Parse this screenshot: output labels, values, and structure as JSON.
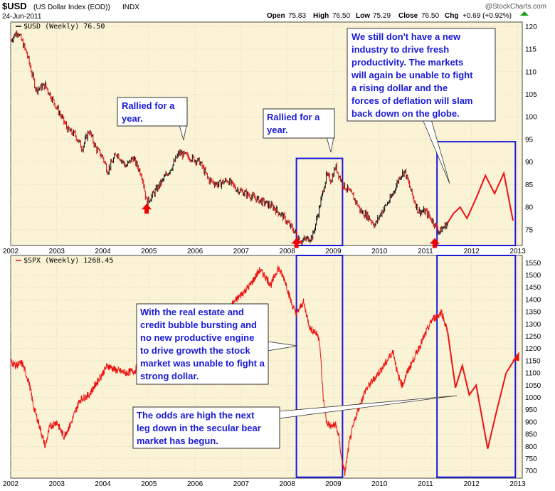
{
  "header": {
    "symbol": "$USD",
    "description": "(US Dollar Index (EOD))",
    "exchange": "INDX",
    "date": "24-Jun-2011",
    "open_label": "Open",
    "open": "75.83",
    "high_label": "High",
    "high": "76.50",
    "low_label": "Low",
    "low": "75.29",
    "close_label": "Close",
    "close": "76.50",
    "chg_label": "Chg",
    "chg": "+0.69 (+0.92%)",
    "watermark": "@StockCharts.com"
  },
  "colors": {
    "panel_bg": "#fbf3d5",
    "line": "#ee1111",
    "box": "#1a1add",
    "bar_up": "#111111",
    "bar_down": "#dd1111",
    "note_text": "#1a1ad8",
    "grid": "#cfc7a8"
  },
  "chart_data": [
    {
      "type": "line",
      "legend": "$USD (Weekly) 76.50",
      "x_ticks": [
        "2002",
        "2003",
        "2004",
        "2005",
        "2006",
        "2007",
        "2008",
        "2009",
        "2010",
        "2011",
        "2012",
        "2013"
      ],
      "y_ticks": [
        75,
        80,
        85,
        90,
        95,
        100,
        105,
        110,
        115,
        120
      ],
      "xlim": [
        2002.0,
        2013.1
      ],
      "ylim": [
        71.5,
        121.0
      ],
      "series": [
        {
          "values_desc": "weekly price",
          "x": [
            2002.0,
            2002.15,
            2002.35,
            2002.55,
            2002.75,
            2002.95,
            2003.1,
            2003.25,
            2003.4,
            2003.55,
            2003.7,
            2003.85,
            2004.0,
            2004.1,
            2004.3,
            2004.5,
            2004.65,
            2004.85,
            2004.95,
            2005.1,
            2005.3,
            2005.5,
            2005.65,
            2005.9,
            2006.1,
            2006.3,
            2006.5,
            2006.7,
            2006.9,
            2007.1,
            2007.3,
            2007.5,
            2007.7,
            2007.9,
            2008.05,
            2008.2,
            2008.3,
            2008.45,
            2008.55,
            2008.7,
            2008.85,
            2008.95,
            2009.05,
            2009.2,
            2009.3,
            2009.45,
            2009.6,
            2009.75,
            2009.9,
            2010.05,
            2010.25,
            2010.45,
            2010.55,
            2010.7,
            2010.85,
            2011.0,
            2011.15,
            2011.3,
            2011.48
          ],
          "y": [
            117,
            119,
            114,
            106,
            107,
            103,
            100,
            97,
            96,
            93,
            97,
            93,
            91,
            88,
            92,
            89,
            91,
            87,
            81,
            83,
            86,
            89,
            92,
            91,
            90,
            86,
            85,
            86,
            84,
            83,
            82,
            81,
            80,
            78,
            76,
            74,
            72.5,
            73,
            73.5,
            80,
            87,
            86,
            89,
            85,
            84,
            82,
            79,
            78,
            76,
            79,
            82,
            87,
            88,
            83,
            79,
            79,
            77,
            74.5,
            76.5
          ]
        },
        {
          "name": "projection",
          "x": [
            2011.48,
            2011.6,
            2011.75,
            2011.9,
            2012.1,
            2012.3,
            2012.5,
            2012.7,
            2012.9
          ],
          "y": [
            76.5,
            78.5,
            80,
            77.5,
            82,
            87,
            83,
            87.5,
            77
          ]
        }
      ],
      "annotations": [
        {
          "text": "Rallied for a year."
        },
        {
          "text": "Rallied for a year."
        },
        {
          "text": "We still don't have a new industry to drive fresh productivity. The markets will again be unable to fight a rising dollar and the forces of deflation will slam back down on the globe."
        }
      ],
      "markers": [
        {
          "type": "up-arrow",
          "x": 2004.95,
          "y": 79.5
        },
        {
          "type": "up-arrow",
          "x": 2008.2,
          "y": 71.9
        },
        {
          "type": "up-arrow",
          "x": 2011.2,
          "y": 71.9
        }
      ],
      "boxes": [
        {
          "x1": 2008.2,
          "x2": 2009.2,
          "y1": 71.5,
          "y2": 90.8
        },
        {
          "x1": 2011.25,
          "x2": 2012.95,
          "y1": 71.5,
          "y2": 94.5
        }
      ]
    },
    {
      "type": "line",
      "legend": "$SPX (Weekly) 1268.45",
      "x_ticks": [
        "2002",
        "2003",
        "2004",
        "2005",
        "2006",
        "2007",
        "2008",
        "2009",
        "2010",
        "2011",
        "2012",
        "2013"
      ],
      "y_ticks": [
        700,
        750,
        800,
        850,
        900,
        950,
        1000,
        1050,
        1100,
        1150,
        1200,
        1250,
        1300,
        1350,
        1400,
        1450,
        1500,
        1550
      ],
      "xlim": [
        2002.0,
        2013.1
      ],
      "ylim": [
        670,
        1580
      ],
      "series": [
        {
          "values_desc": "weekly price",
          "x": [
            2002.0,
            2002.1,
            2002.25,
            2002.4,
            2002.5,
            2002.6,
            2002.75,
            2002.85,
            2003.0,
            2003.15,
            2003.3,
            2003.5,
            2003.7,
            2003.9,
            2004.1,
            2004.3,
            2004.5,
            2004.7,
            2004.9,
            2005.1,
            2005.3,
            2005.5,
            2005.7,
            2005.9,
            2006.1,
            2006.3,
            2006.45,
            2006.6,
            2006.8,
            2007.0,
            2007.2,
            2007.4,
            2007.5,
            2007.65,
            2007.8,
            2007.95,
            2008.1,
            2008.2,
            2008.35,
            2008.5,
            2008.6,
            2008.7,
            2008.78,
            2008.85,
            2008.95,
            2009.05,
            2009.12,
            2009.18,
            2009.25,
            2009.35,
            2009.5,
            2009.7,
            2009.9,
            2010.1,
            2010.3,
            2010.4,
            2010.5,
            2010.6,
            2010.8,
            2011.0,
            2011.15,
            2011.25,
            2011.35,
            2011.48
          ],
          "y": [
            1150,
            1130,
            1140,
            1060,
            960,
            900,
            800,
            880,
            900,
            840,
            890,
            990,
            1010,
            1070,
            1130,
            1110,
            1100,
            1110,
            1180,
            1190,
            1170,
            1210,
            1230,
            1250,
            1280,
            1300,
            1260,
            1280,
            1380,
            1420,
            1460,
            1520,
            1500,
            1460,
            1530,
            1480,
            1380,
            1340,
            1390,
            1280,
            1270,
            1240,
            1000,
            900,
            880,
            890,
            840,
            750,
            690,
            820,
            930,
            1030,
            1080,
            1130,
            1190,
            1090,
            1050,
            1100,
            1180,
            1260,
            1320,
            1330,
            1350,
            1268
          ]
        },
        {
          "name": "projection",
          "x": [
            2011.48,
            2011.65,
            2011.8,
            2011.95,
            2012.1,
            2012.35,
            2012.55,
            2012.75,
            2013.0
          ],
          "y": [
            1268,
            1040,
            1130,
            1010,
            1050,
            790,
            950,
            1100,
            1175
          ]
        }
      ],
      "annotations": [
        {
          "text": "With the real estate and credit bubble bursting and no new productive engine to drive growth the stock market was unable to fight a strong dollar."
        },
        {
          "text": "The odds are high the next leg down in the secular bear market has begun."
        }
      ],
      "boxes": [
        {
          "x1": 2008.2,
          "x2": 2009.2,
          "y1": 674,
          "y2": 1580
        },
        {
          "x1": 2011.25,
          "x2": 2012.95,
          "y1": 674,
          "y2": 1580
        }
      ]
    }
  ]
}
